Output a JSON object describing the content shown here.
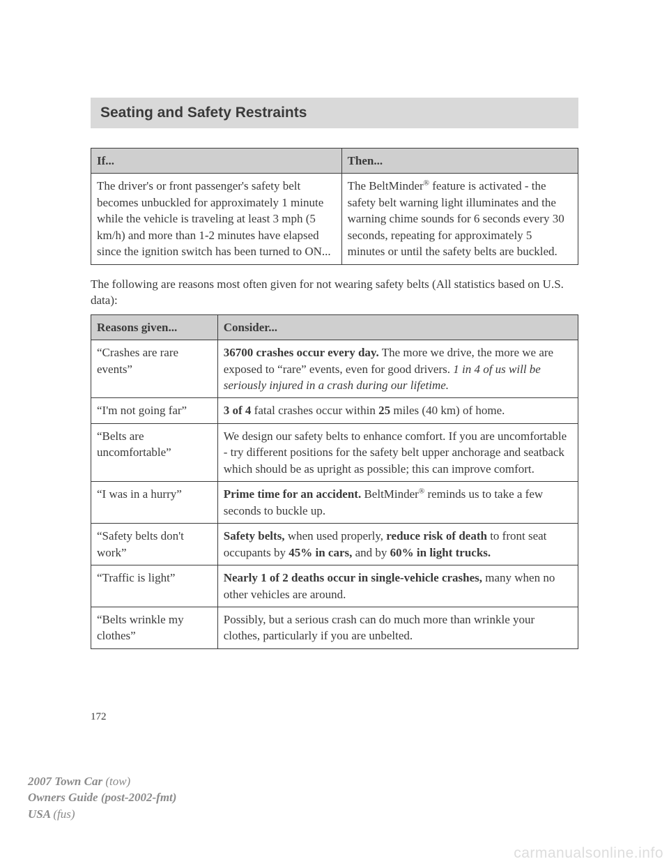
{
  "header": {
    "title": "Seating and Safety Restraints"
  },
  "table1": {
    "headers": {
      "if": "If...",
      "then": "Then..."
    },
    "row": {
      "if": "The driver's or front passenger's safety belt becomes unbuckled for approximately 1 minute while the vehicle is traveling at least 3 mph (5 km/h) and more than 1-2 minutes have elapsed since the ignition switch has been turned to ON...",
      "then_pre": "The BeltMinder",
      "then_post": " feature is activated - the safety belt warning light illuminates and the warning chime sounds for 6 seconds every 30 seconds, repeating for approximately 5 minutes or until the safety belts are buckled."
    }
  },
  "intro": "The following are reasons most often given for not wearing safety belts (All statistics based on U.S. data):",
  "table2": {
    "headers": {
      "reason": "Reasons given...",
      "consider": "Consider..."
    },
    "rows": [
      {
        "reason": "“Crashes are rare events”",
        "consider_b1": "36700 crashes occur every day.",
        "consider_t1": " The more we drive, the more we are exposed to “rare” events, even for good drivers. ",
        "consider_i1": "1 in 4 of us will be seriously injured in a crash during our lifetime."
      },
      {
        "reason": "“I'm not going far”",
        "consider_b1": "3 of 4",
        "consider_t1": " fatal crashes occur within ",
        "consider_b2": "25",
        "consider_t2": " miles (40 km) of home."
      },
      {
        "reason": "“Belts are uncomfortable”",
        "consider_t1": "We design our safety belts to enhance comfort. If you are uncomfortable - try different positions for the safety belt upper anchorage and seatback which should be as upright as possible; this can improve comfort."
      },
      {
        "reason": "“I was in a hurry”",
        "consider_b1": "Prime time for an accident.",
        "consider_t1": " BeltMinder",
        "consider_t2": " reminds us to take a few seconds to buckle up."
      },
      {
        "reason": "“Safety belts don't work”",
        "consider_b1": "Safety belts,",
        "consider_t1": " when used properly, ",
        "consider_b2": "reduce risk of death",
        "consider_t2": " to front seat occupants by ",
        "consider_b3": "45% in cars,",
        "consider_t3": " and by ",
        "consider_b4": "60% in light trucks."
      },
      {
        "reason": "“Traffic is light”",
        "consider_b1": "Nearly 1 of 2 deaths occur in single-vehicle crashes,",
        "consider_t1": " many when no other vehicles are around."
      },
      {
        "reason": "“Belts wrinkle my clothes”",
        "consider_t1": "Possibly, but a serious crash can do much more than wrinkle your clothes, particularly if you are unbelted."
      }
    ]
  },
  "page_number": "172",
  "footer": {
    "line1_b": "2007 Town Car ",
    "line1_i": "(tow)",
    "line2": "Owners Guide (post-2002-fmt)",
    "line3_b": "USA ",
    "line3_i": "(fus)"
  },
  "watermark": "carmanualsonline.info",
  "reg_symbol": "®"
}
